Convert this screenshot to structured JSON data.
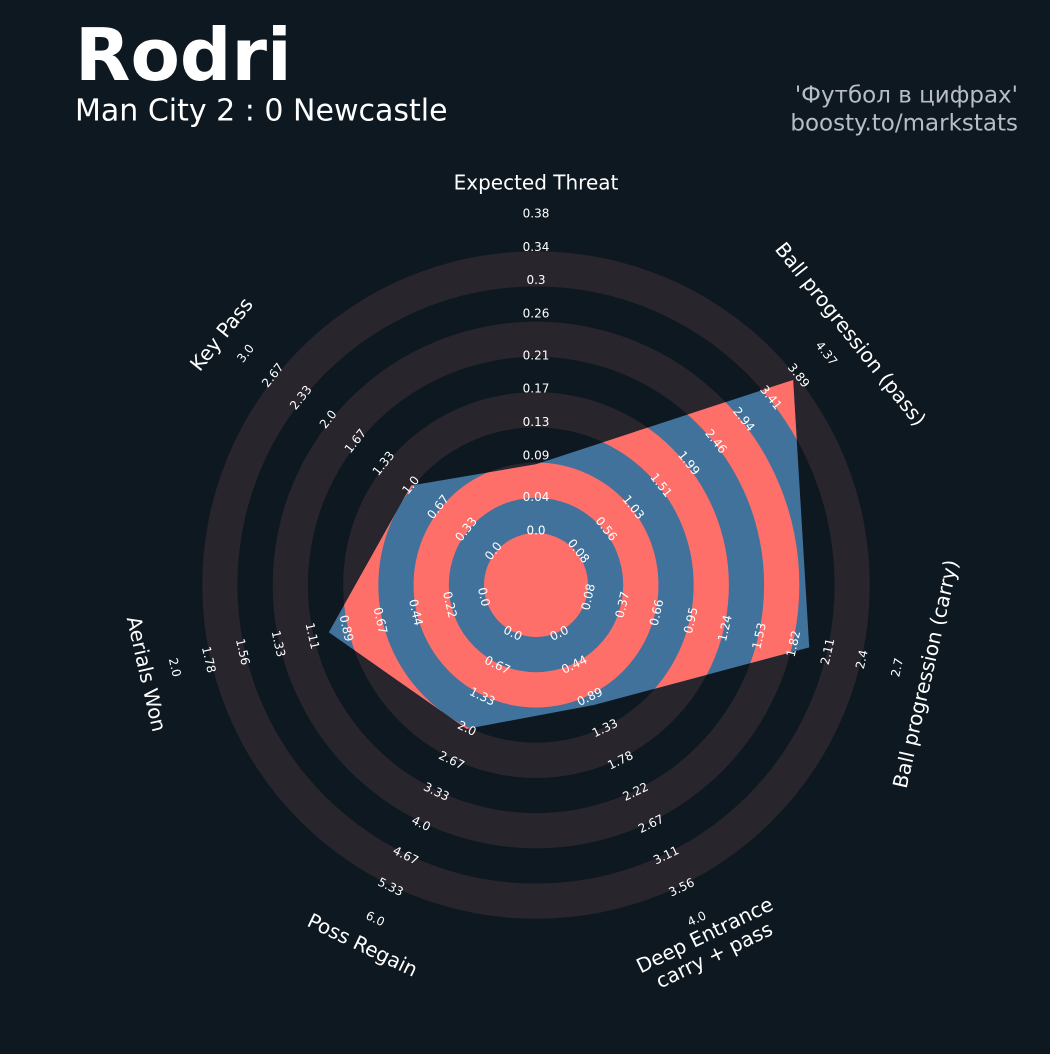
{
  "chart_data": {
    "type": "radar",
    "title": "Rodri",
    "subtitle": "Man City 2 : 0 Newcastle",
    "credit": [
      "'Футбол в цифрах'",
      "boosty.to/markstats"
    ],
    "color": "#41729c",
    "alt_color": "#ff6f69",
    "params": [
      {
        "name": [
          "Expected Threat"
        ],
        "lim": [
          0,
          0.38
        ],
        "ticks": [
          {
            "value": 0,
            "label": "0.0"
          },
          0.04,
          0.09,
          0.13,
          0.17,
          0.21,
          0.26,
          0.3,
          0.34,
          0.38
        ]
      },
      {
        "name": [
          "Ball progression (pass)"
        ],
        "lim": [
          0.08,
          4.37
        ],
        "ticks": [
          0.08,
          0.56,
          1.03,
          1.51,
          1.99,
          2.46,
          2.94,
          3.41,
          3.89,
          4.37
        ]
      },
      {
        "name": [
          "Ball progression (carry)"
        ],
        "lim": [
          0.08,
          2.7
        ],
        "ticks": [
          0.08,
          0.37,
          0.66,
          0.95,
          1.24,
          1.53,
          1.82,
          2.11,
          2.4,
          2.7
        ]
      },
      {
        "name": [
          "Deep Entrance",
          "carry + pass"
        ],
        "lim": [
          0,
          4
        ],
        "ticks": [
          {
            "value": 0,
            "label": "0.0"
          },
          0.44,
          0.89,
          1.33,
          1.78,
          2.22,
          2.67,
          3.11,
          3.56,
          {
            "value": 4,
            "label": "4.0"
          }
        ]
      },
      {
        "name": [
          "Poss Regain"
        ],
        "lim": [
          0,
          6
        ],
        "ticks": [
          {
            "value": 0,
            "label": "0.0"
          },
          0.67,
          1.33,
          {
            "value": 2,
            "label": "2.0"
          },
          2.67,
          3.33,
          {
            "value": 4,
            "label": "4.0"
          },
          4.67,
          5.33,
          {
            "value": 6,
            "label": "6.0"
          }
        ]
      },
      {
        "name": [
          "Aerials Won"
        ],
        "lim": [
          0,
          2
        ],
        "ticks": [
          {
            "value": 0,
            "label": "0.0"
          },
          0.22,
          0.44,
          0.67,
          0.89,
          1.11,
          1.33,
          1.56,
          1.78,
          {
            "value": 2,
            "label": "2.0"
          }
        ]
      },
      {
        "name": [
          "Key Pass"
        ],
        "lim": [
          0,
          3
        ],
        "ticks": [
          {
            "value": 0,
            "label": "0.0"
          },
          0.33,
          0.67,
          {
            "value": 1,
            "label": "1.0"
          },
          1.33,
          1.67,
          {
            "value": 2,
            "label": "2.0"
          },
          2.33,
          2.67,
          {
            "value": 3,
            "label": "3.0"
          }
        ]
      }
    ],
    "values": [
      0.08,
      3.8,
      1.95,
      1.0,
      2.0,
      1.0,
      1.0
    ]
  }
}
